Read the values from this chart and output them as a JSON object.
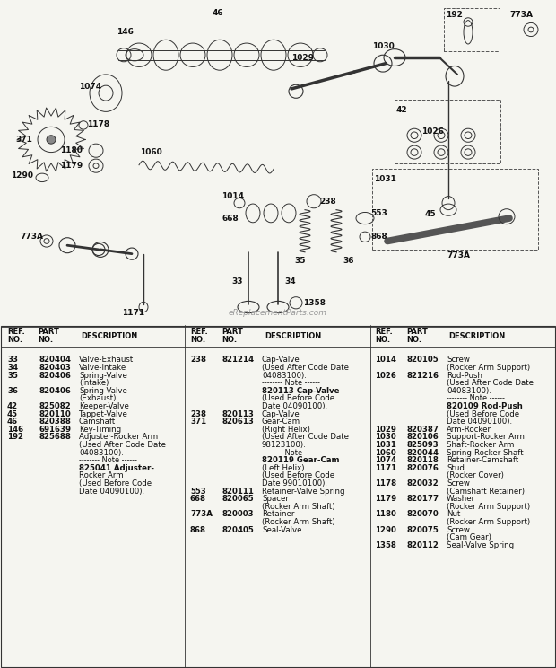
{
  "bg_color": "#f5f5f0",
  "table_bg": "#ffffff",
  "watermark": "eReplacementParts.com",
  "diagram_split": 0.515,
  "col1_entries": [
    [
      "33",
      "820404",
      "Valve-Exhaust",
      false,
      false
    ],
    [
      "34",
      "820403",
      "Valve-Intake",
      false,
      false
    ],
    [
      "35",
      "820406",
      "Spring-Valve",
      false,
      false
    ],
    [
      "",
      "",
      "(Intake)",
      false,
      false
    ],
    [
      "36",
      "820406",
      "Spring-Valve",
      false,
      false
    ],
    [
      "",
      "",
      "(Exhaust)",
      false,
      false
    ],
    [
      "42",
      "825082",
      "Keeper-Valve",
      false,
      false
    ],
    [
      "45",
      "820110",
      "Tappet-Valve",
      false,
      false
    ],
    [
      "46",
      "820388",
      "Camshaft",
      false,
      false
    ],
    [
      "146",
      "691639",
      "Key-Timing",
      false,
      false
    ],
    [
      "192",
      "825688",
      "Adjuster-Rocker Arm",
      false,
      false
    ],
    [
      "",
      "",
      "(Used After Code Date",
      false,
      false
    ],
    [
      "",
      "",
      "04083100).",
      false,
      false
    ],
    [
      "",
      "",
      "-------- Note ------",
      false,
      true
    ],
    [
      "",
      "",
      "825041 Adjuster-",
      true,
      false
    ],
    [
      "",
      "",
      "Rocker Arm",
      false,
      false
    ],
    [
      "",
      "",
      "(Used Before Code",
      false,
      false
    ],
    [
      "",
      "",
      "Date 04090100).",
      false,
      false
    ]
  ],
  "col2_entries": [
    [
      "238",
      "821214",
      "Cap-Valve",
      false,
      false
    ],
    [
      "",
      "",
      "(Used After Code Date",
      false,
      false
    ],
    [
      "",
      "",
      "04083100).",
      false,
      false
    ],
    [
      "",
      "",
      "-------- Note ------",
      false,
      true
    ],
    [
      "",
      "",
      "820113 Cap-Valve",
      true,
      false
    ],
    [
      "",
      "",
      "(Used Before Code",
      false,
      false
    ],
    [
      "",
      "",
      "Date 04090100).",
      false,
      false
    ],
    [
      "238",
      "820113",
      "Cap-Valve",
      false,
      false
    ],
    [
      "371",
      "820613",
      "Gear-Cam",
      false,
      false
    ],
    [
      "",
      "",
      "(Right Helix)",
      false,
      false
    ],
    [
      "",
      "",
      "(Used After Code Date",
      false,
      false
    ],
    [
      "",
      "",
      "98123100).",
      false,
      false
    ],
    [
      "",
      "",
      "-------- Note ------",
      false,
      true
    ],
    [
      "",
      "",
      "820119 Gear-Cam",
      true,
      false
    ],
    [
      "",
      "",
      "(Left Helix)",
      false,
      false
    ],
    [
      "",
      "",
      "(Used Before Code",
      false,
      false
    ],
    [
      "",
      "",
      "Date 99010100).",
      false,
      false
    ],
    [
      "553",
      "820111",
      "Retainer-Valve Spring",
      false,
      false
    ],
    [
      "668",
      "820065",
      "Spacer",
      false,
      false
    ],
    [
      "",
      "",
      "(Rocker Arm Shaft)",
      false,
      false
    ],
    [
      "773A",
      "820003",
      "Retainer",
      false,
      false
    ],
    [
      "",
      "",
      "(Rocker Arm Shaft)",
      false,
      false
    ],
    [
      "868",
      "820405",
      "Seal-Valve",
      false,
      false
    ]
  ],
  "col3_entries": [
    [
      "1014",
      "820105",
      "Screw",
      false,
      false
    ],
    [
      "",
      "",
      "(Rocker Arm Support)",
      false,
      false
    ],
    [
      "1026",
      "821216",
      "Rod-Push",
      false,
      false
    ],
    [
      "",
      "",
      "(Used After Code Date",
      false,
      false
    ],
    [
      "",
      "",
      "04083100).",
      false,
      false
    ],
    [
      "",
      "",
      "-------- Note ------",
      false,
      true
    ],
    [
      "",
      "",
      "820109 Rod-Push",
      true,
      false
    ],
    [
      "",
      "",
      "(Used Before Code",
      false,
      false
    ],
    [
      "",
      "",
      "Date 04090100).",
      false,
      false
    ],
    [
      "1029",
      "820387",
      "Arm-Rocker",
      false,
      false
    ],
    [
      "1030",
      "820106",
      "Support-Rocker Arm",
      false,
      false
    ],
    [
      "1031",
      "825093",
      "Shaft-Rocker Arm",
      false,
      false
    ],
    [
      "1060",
      "820044",
      "Spring-Rocker Shaft",
      false,
      false
    ],
    [
      "1074",
      "820118",
      "Retainer-Camshaft",
      false,
      false
    ],
    [
      "1171",
      "820076",
      "Stud",
      false,
      false
    ],
    [
      "",
      "",
      "(Rocker Cover)",
      false,
      false
    ],
    [
      "1178",
      "820032",
      "Screw",
      false,
      false
    ],
    [
      "",
      "",
      "(Camshaft Retainer)",
      false,
      false
    ],
    [
      "1179",
      "820177",
      "Washer",
      false,
      false
    ],
    [
      "",
      "",
      "(Rocker Arm Support)",
      false,
      false
    ],
    [
      "1180",
      "820070",
      "Nut",
      false,
      false
    ],
    [
      "",
      "",
      "(Rocker Arm Support)",
      false,
      false
    ],
    [
      "1290",
      "820075",
      "Screw",
      false,
      false
    ],
    [
      "",
      "",
      "(Cam Gear)",
      false,
      false
    ],
    [
      "1358",
      "820112",
      "Seal-Valve Spring",
      false,
      false
    ]
  ]
}
